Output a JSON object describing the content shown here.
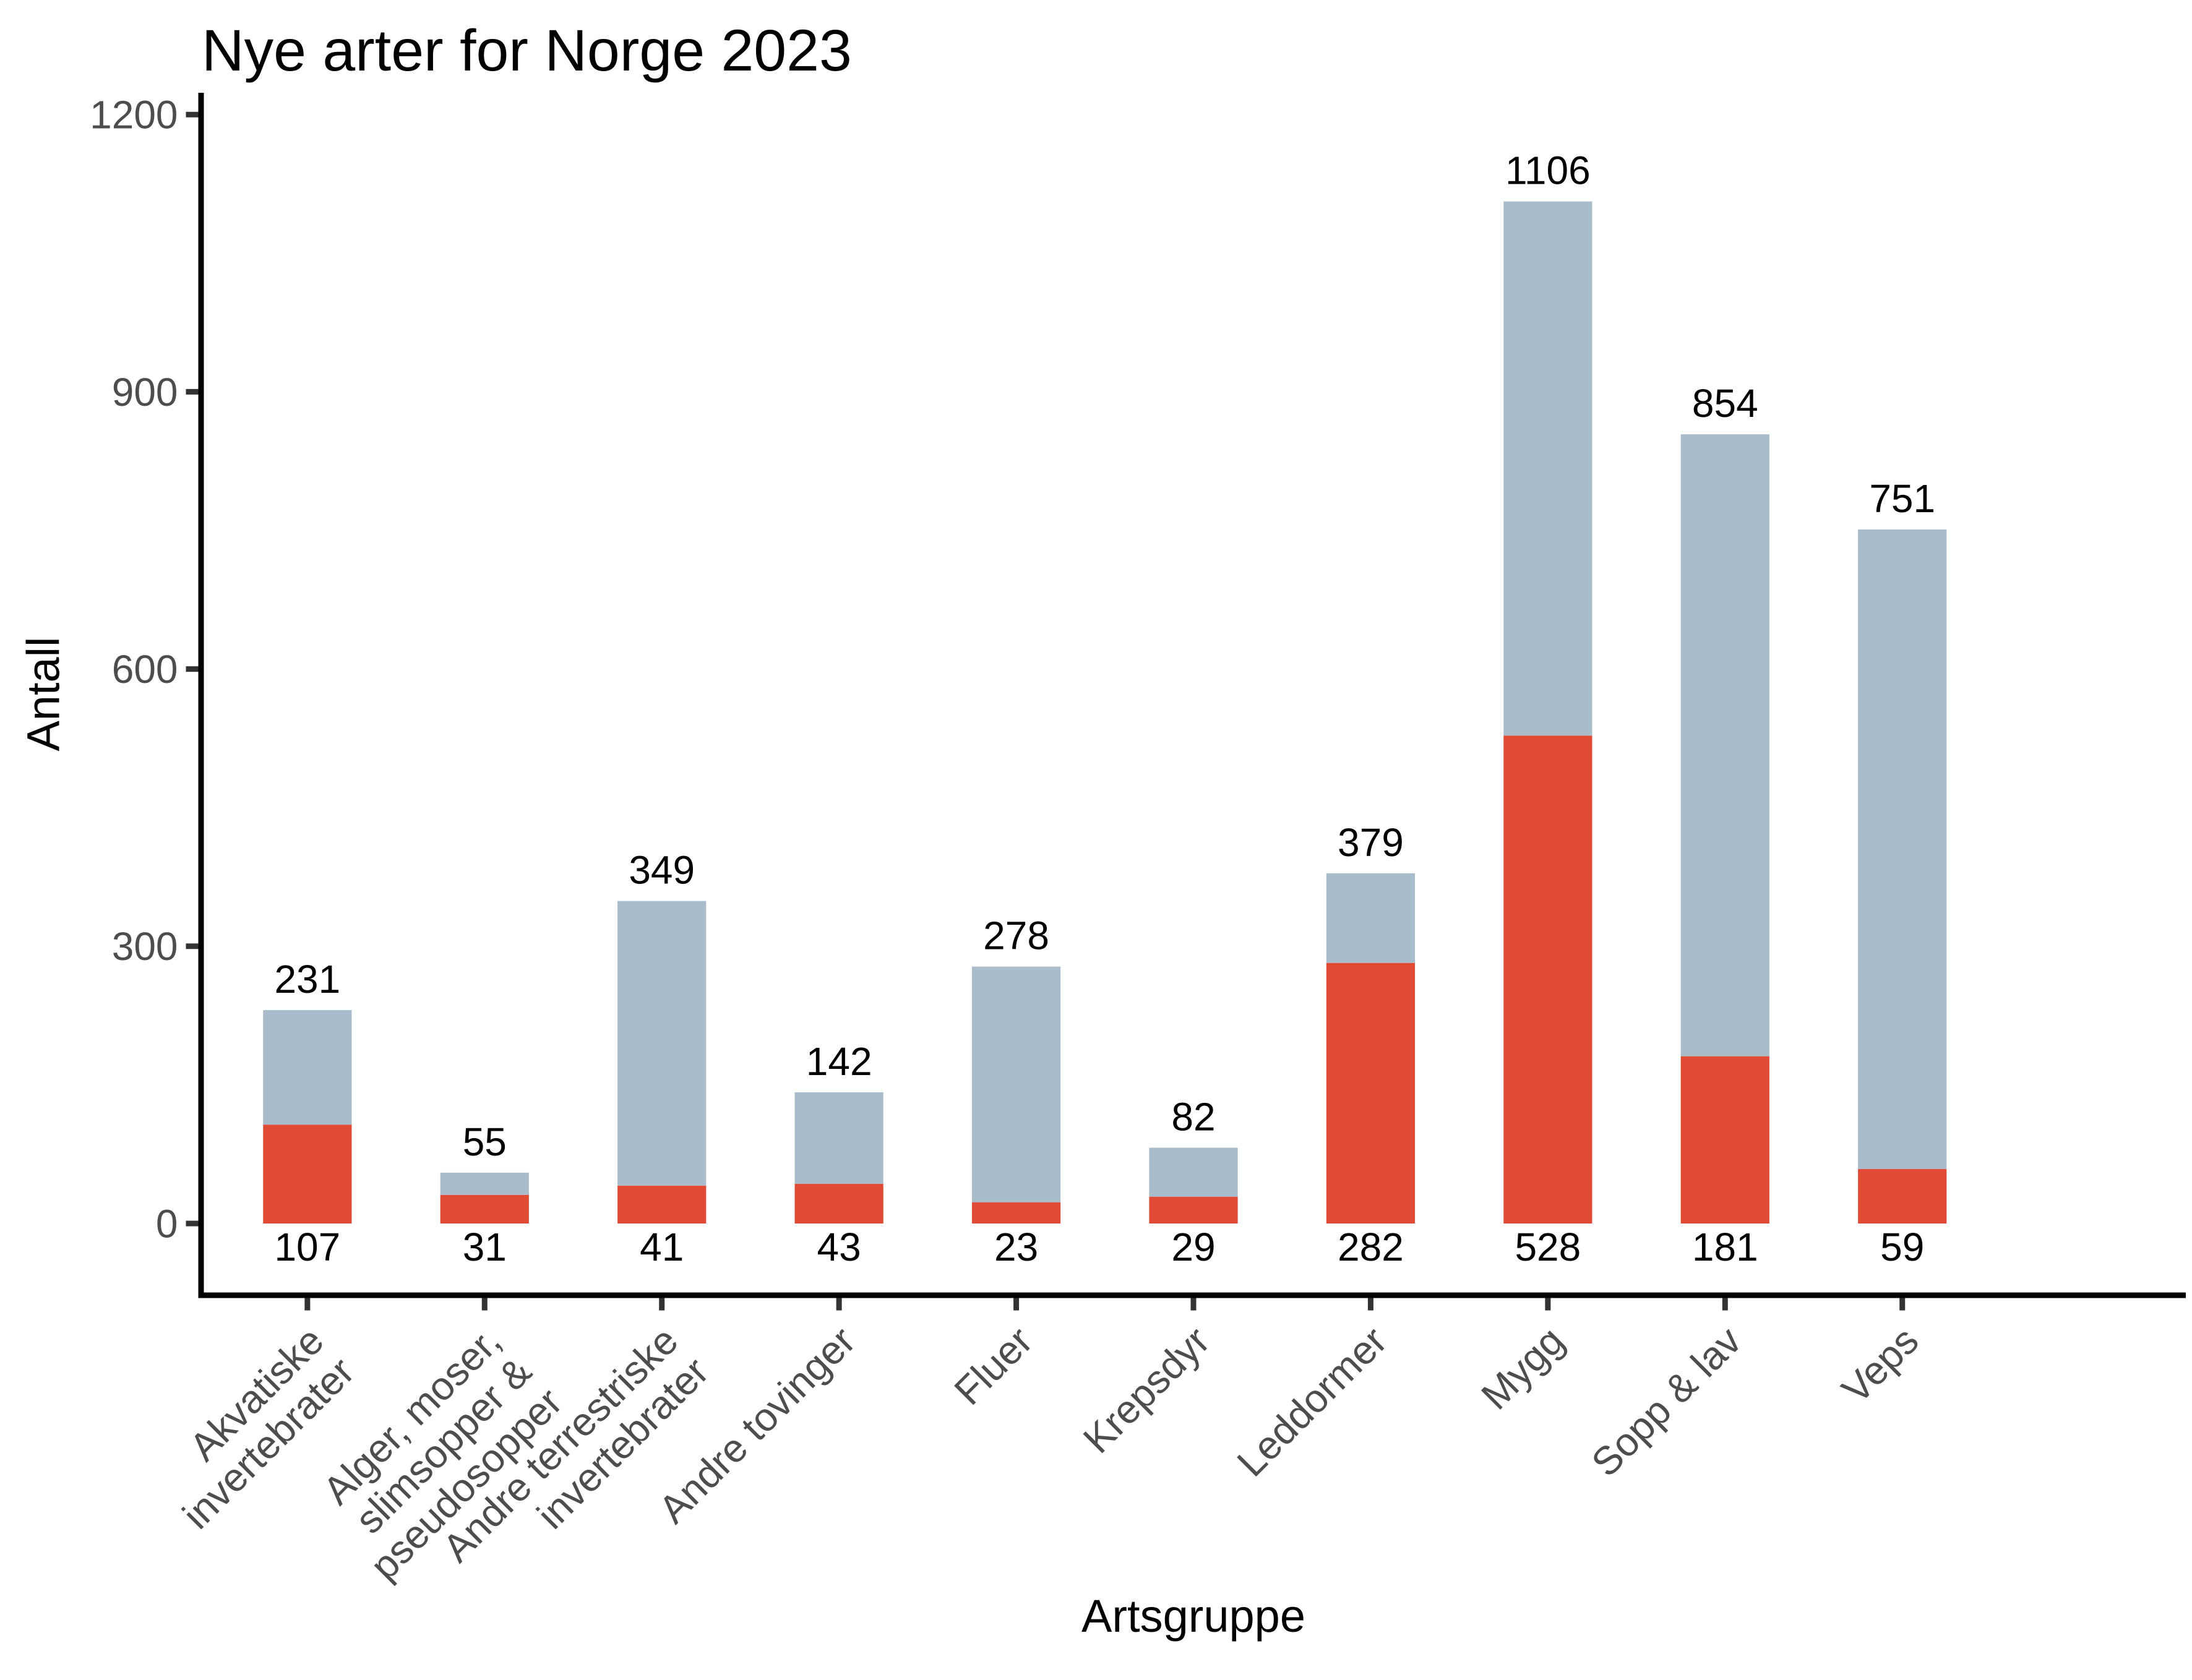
{
  "chart_data": {
    "type": "bar",
    "stacked": true,
    "title": "Nye arter for Norge 2023",
    "xlabel": "Artsgruppe",
    "ylabel": "Antall",
    "ylim": [
      0,
      1200
    ],
    "yticks": [
      0,
      300,
      600,
      900,
      1200
    ],
    "grid": false,
    "legend": "none",
    "categories": [
      "Akvatiske invertebrater",
      "Alger, moser, slimsopper & pseudosopper",
      "Andre terrestriske invertebrater",
      "Andre tovinger",
      "Fluer",
      "Krepsdyr",
      "Leddormer",
      "Mygg",
      "Sopp & lav",
      "Veps"
    ],
    "category_label_lines": [
      [
        "Akvatiske",
        "invertebrater"
      ],
      [
        "Alger, moser,",
        "slimsopper &",
        "pseudosopper"
      ],
      [
        "Andre terrestriske",
        "invertebrater"
      ],
      [
        "Andre tovinger"
      ],
      [
        "Fluer"
      ],
      [
        "Krepsdyr"
      ],
      [
        "Leddormer"
      ],
      [
        "Mygg"
      ],
      [
        "Sopp & lav"
      ],
      [
        "Veps"
      ]
    ],
    "series": [
      {
        "name": "red-bottom-segment",
        "color": "#E04B35",
        "values": [
          107,
          31,
          41,
          43,
          23,
          29,
          282,
          528,
          181,
          59
        ]
      },
      {
        "name": "blue-gray-top-segment",
        "color": "#A9BCCB",
        "values": [
          124,
          24,
          308,
          99,
          255,
          53,
          97,
          578,
          673,
          692
        ]
      }
    ],
    "totals": [
      231,
      55,
      349,
      142,
      278,
      82,
      379,
      1106,
      854,
      751
    ],
    "top_value_labels": [
      "231",
      "55",
      "349",
      "142",
      "278",
      "82",
      "379",
      "1106",
      "854",
      "751"
    ],
    "bottom_value_labels": [
      "107",
      "31",
      "41",
      "43",
      "23",
      "29",
      "282",
      "528",
      "181",
      "59"
    ],
    "colors": {
      "red": "#E04B35",
      "blue_gray": "#A9BCCB",
      "axis_line": "#000000",
      "tick_mark": "#333333",
      "tick_label": "#4D4D4D",
      "value_label": "#000000",
      "background": "#FFFFFF"
    }
  }
}
